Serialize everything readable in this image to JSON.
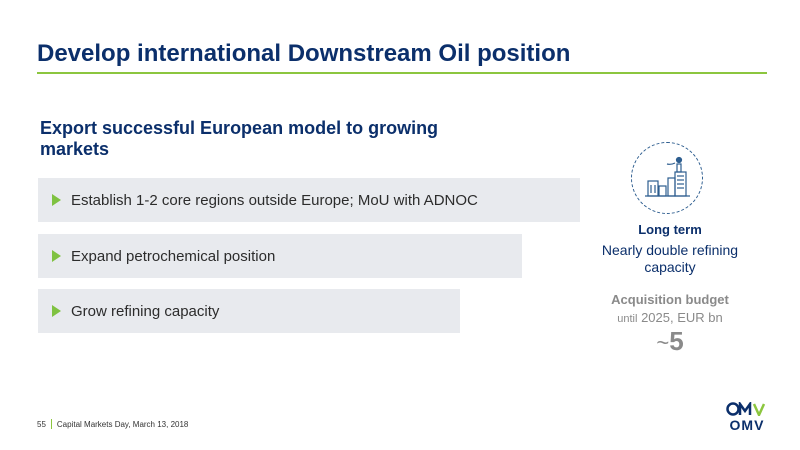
{
  "slide": {
    "title": "Develop international Downstream Oil position",
    "subtitle": "Export successful European model to growing markets"
  },
  "items": [
    {
      "label": "Establish 1-2 core regions outside Europe; MoU with ADNOC"
    },
    {
      "label": "Expand petrochemical position"
    },
    {
      "label": "Grow refining capacity"
    }
  ],
  "long_term": {
    "icon": "refinery-icon",
    "heading": "Long term",
    "body": "Nearly double refining capacity"
  },
  "acquisition": {
    "heading": "Acquisition budget",
    "until": "until",
    "period": "2025, EUR bn",
    "tilde": "~",
    "value": "5"
  },
  "footer": {
    "page_number": "55",
    "event": "Capital Markets Day, March 13, 2018"
  },
  "logo": {
    "text": "OMV"
  },
  "colors": {
    "navy": "#0b2f6b",
    "green": "#8cc63f",
    "bar_bg": "#e8eaee",
    "grey": "#8a8a8a"
  }
}
